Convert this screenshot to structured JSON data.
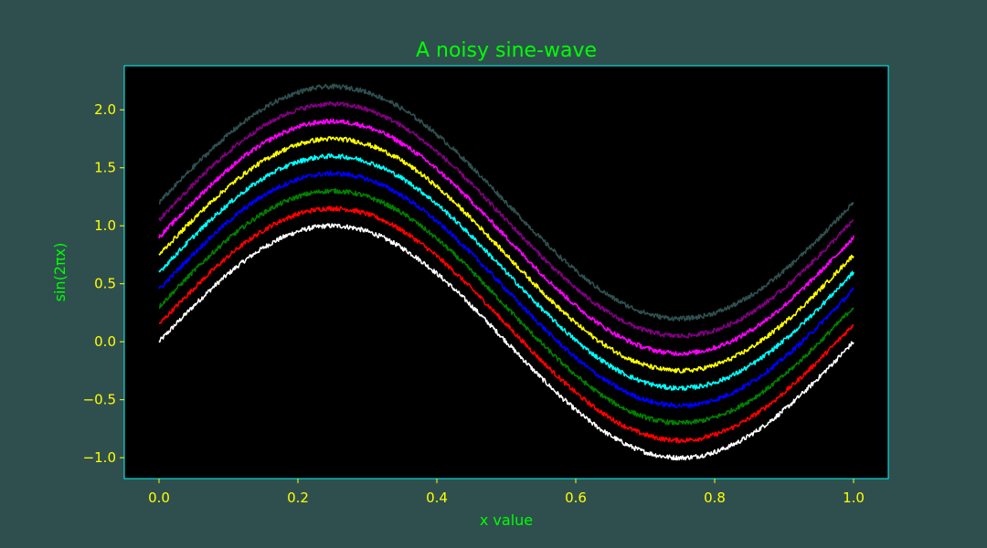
{
  "figure": {
    "background": "#2f4f4f"
  },
  "chart_data": {
    "type": "line",
    "title": "A noisy sine-wave",
    "xlabel": "x value",
    "ylabel": "sin(2πx)",
    "xlim": [
      -0.05,
      1.05
    ],
    "ylim": [
      -1.18,
      2.38
    ],
    "xticks": [
      0.0,
      0.2,
      0.4,
      0.6,
      0.8,
      1.0
    ],
    "xtick_labels": [
      "0.0",
      "0.2",
      "0.4",
      "0.6",
      "0.8",
      "1.0"
    ],
    "yticks": [
      -1.0,
      -0.5,
      0.0,
      0.5,
      1.0,
      1.5,
      2.0
    ],
    "ytick_labels": [
      "−1.0",
      "−0.5",
      "0.0",
      "0.5",
      "1.0",
      "1.5",
      "2.0"
    ],
    "grid": false,
    "legend": "none",
    "plot_background": "#000000",
    "spine_color": "#00ffff",
    "tick_color": "#ffff00",
    "label_color": "#00ff00",
    "title_color": "#00ff00",
    "function": "sin(2*pi*x) + offset + noise",
    "x_range": [
      0.0,
      1.0
    ],
    "noise_amplitude": 0.02,
    "series": [
      {
        "offset": 0.0,
        "color": "#ffffff"
      },
      {
        "offset": 0.15,
        "color": "#ff0000"
      },
      {
        "offset": 0.3,
        "color": "#008000"
      },
      {
        "offset": 0.45,
        "color": "#0000ff"
      },
      {
        "offset": 0.6,
        "color": "#00ffff"
      },
      {
        "offset": 0.75,
        "color": "#ffff00"
      },
      {
        "offset": 0.9,
        "color": "#ff00ff"
      },
      {
        "offset": 1.05,
        "color": "#800080"
      },
      {
        "offset": 1.2,
        "color": "#2f4f4f"
      }
    ]
  }
}
